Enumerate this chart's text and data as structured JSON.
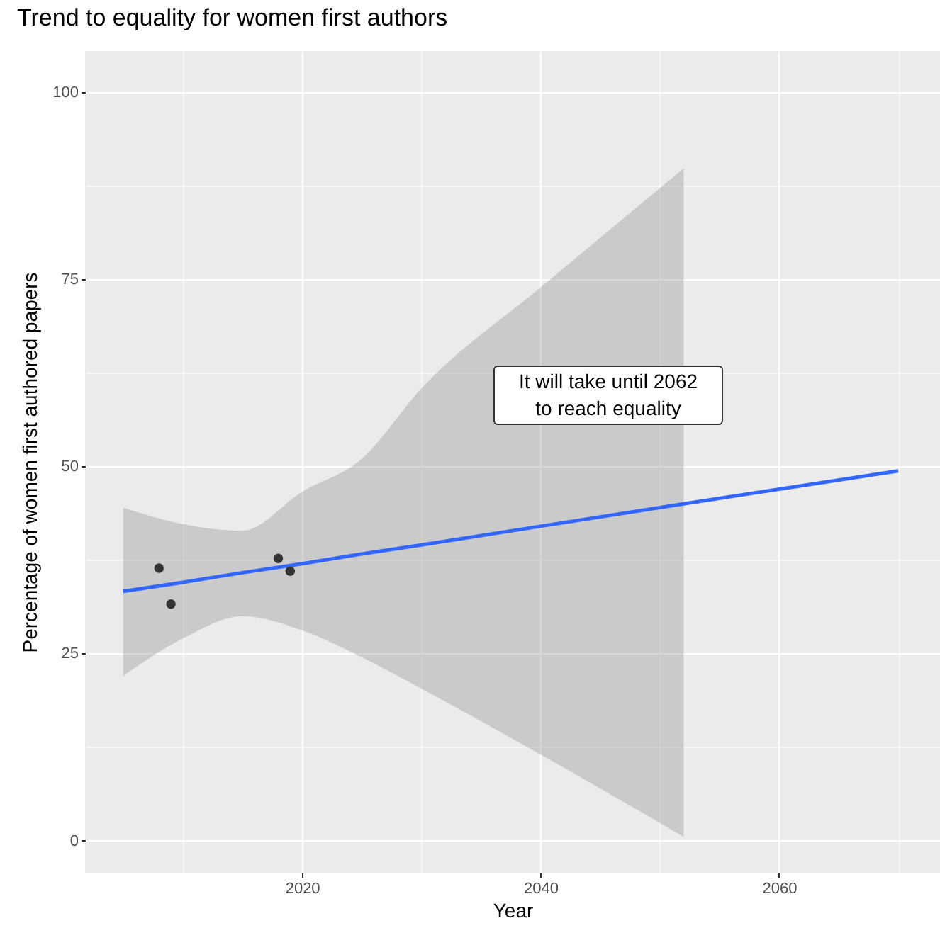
{
  "chart_data": {
    "type": "scatter",
    "title": "Trend to equality for women first authors",
    "xlabel": "Year",
    "ylabel": "Percentage of women first authored papers",
    "annotations": [
      "It will take until 2062\nto reach equality"
    ],
    "xlim": [
      2001.8,
      2073.5
    ],
    "ylim": [
      -4.3,
      105.5
    ],
    "xticks": [
      {
        "value": 2010,
        "label": null
      },
      2020,
      {
        "value": 2030,
        "label": null
      },
      2040,
      {
        "value": 2050,
        "label": null
      },
      2060,
      {
        "value": 2070,
        "label": null
      }
    ],
    "yticks": [
      0,
      {
        "value": 12.5,
        "label": null
      },
      25,
      {
        "value": 37.5,
        "label": null
      },
      50,
      {
        "value": 62.5,
        "label": null
      },
      75,
      {
        "value": 87.5,
        "label": null
      },
      100
    ],
    "grid": true,
    "series": [
      {
        "type": "line",
        "color": "#3366ff",
        "line_style": "solid",
        "x": [
          2005,
          2010,
          2015,
          2020,
          2025,
          2030,
          2040,
          2052,
          2070
        ],
        "values": [
          33.3,
          34.5,
          35.8,
          37.0,
          38.3,
          39.5,
          42.0,
          45.0,
          49.4
        ],
        "lower": [
          22.0,
          27.0,
          30.0,
          28.1,
          24.5,
          20.3,
          11.5,
          0.5,
          null
        ],
        "upper": [
          44.5,
          42.3,
          41.4,
          46.6,
          51.0,
          60.4,
          73.9,
          89.8,
          null
        ]
      },
      {
        "color": "#333333",
        "marker": "circle",
        "x": [
          2008,
          2009,
          2018,
          2019
        ],
        "values": [
          36.4,
          31.6,
          37.7,
          36.0
        ]
      }
    ]
  }
}
